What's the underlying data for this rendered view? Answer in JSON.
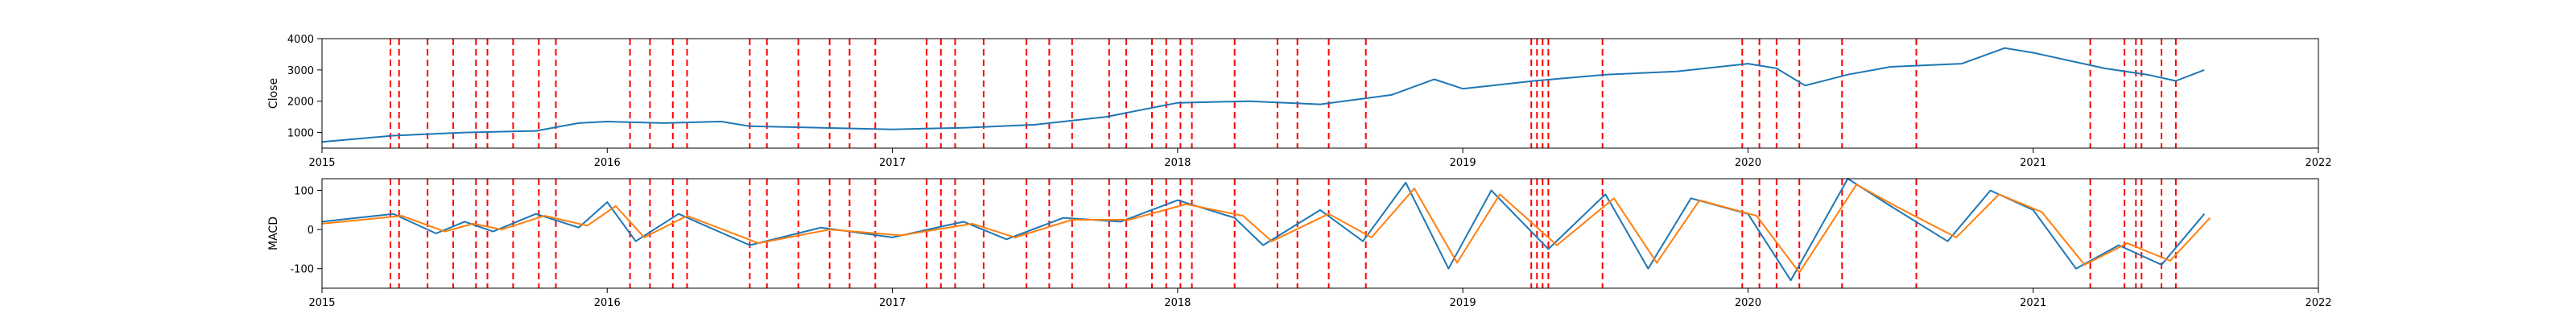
{
  "chart_data": [
    {
      "type": "line",
      "title": "",
      "xlabel": "",
      "ylabel": "Close",
      "xlim": [
        2015,
        2022
      ],
      "ylim": [
        500,
        4000
      ],
      "x_ticks": [
        "2015",
        "2016",
        "2017",
        "2018",
        "2019",
        "2020",
        "2021",
        "2022"
      ],
      "y_ticks": [
        "1000",
        "2000",
        "3000",
        "4000"
      ],
      "grid": false,
      "series": [
        {
          "color": "#1f77b4",
          "points": [
            [
              2015.0,
              700
            ],
            [
              2015.25,
              900
            ],
            [
              2015.5,
              1000
            ],
            [
              2015.75,
              1050
            ],
            [
              2015.9,
              1300
            ],
            [
              2016.0,
              1350
            ],
            [
              2016.2,
              1300
            ],
            [
              2016.4,
              1350
            ],
            [
              2016.5,
              1200
            ],
            [
              2016.75,
              1150
            ],
            [
              2017.0,
              1100
            ],
            [
              2017.25,
              1150
            ],
            [
              2017.5,
              1250
            ],
            [
              2017.75,
              1500
            ],
            [
              2018.0,
              1950
            ],
            [
              2018.25,
              2000
            ],
            [
              2018.5,
              1900
            ],
            [
              2018.75,
              2200
            ],
            [
              2018.9,
              2700
            ],
            [
              2019.0,
              2400
            ],
            [
              2019.25,
              2650
            ],
            [
              2019.5,
              2850
            ],
            [
              2019.75,
              2950
            ],
            [
              2020.0,
              3200
            ],
            [
              2020.1,
              3050
            ],
            [
              2020.2,
              2500
            ],
            [
              2020.35,
              2850
            ],
            [
              2020.5,
              3100
            ],
            [
              2020.75,
              3200
            ],
            [
              2020.9,
              3700
            ],
            [
              2021.0,
              3550
            ],
            [
              2021.25,
              3050
            ],
            [
              2021.4,
              2850
            ],
            [
              2021.5,
              2650
            ],
            [
              2021.6,
              3000
            ]
          ]
        }
      ]
    },
    {
      "type": "line",
      "title": "",
      "xlabel": "",
      "ylabel": "MACD",
      "xlim": [
        2015,
        2022
      ],
      "ylim": [
        -150,
        130
      ],
      "x_ticks": [
        "2015",
        "2016",
        "2017",
        "2018",
        "2019",
        "2020",
        "2021",
        "2022"
      ],
      "y_ticks": [
        "-100",
        "0",
        "100"
      ],
      "grid": false,
      "series": [
        {
          "color": "#1f77b4",
          "points": [
            [
              2015.0,
              20
            ],
            [
              2015.25,
              40
            ],
            [
              2015.4,
              -10
            ],
            [
              2015.5,
              20
            ],
            [
              2015.6,
              -5
            ],
            [
              2015.75,
              40
            ],
            [
              2015.9,
              5
            ],
            [
              2016.0,
              70
            ],
            [
              2016.1,
              -30
            ],
            [
              2016.25,
              40
            ],
            [
              2016.5,
              -40
            ],
            [
              2016.75,
              5
            ],
            [
              2017.0,
              -20
            ],
            [
              2017.25,
              20
            ],
            [
              2017.4,
              -25
            ],
            [
              2017.6,
              30
            ],
            [
              2017.8,
              20
            ],
            [
              2018.0,
              75
            ],
            [
              2018.2,
              30
            ],
            [
              2018.3,
              -40
            ],
            [
              2018.5,
              50
            ],
            [
              2018.65,
              -30
            ],
            [
              2018.8,
              120
            ],
            [
              2018.95,
              -100
            ],
            [
              2019.1,
              100
            ],
            [
              2019.3,
              -50
            ],
            [
              2019.5,
              90
            ],
            [
              2019.65,
              -100
            ],
            [
              2019.8,
              80
            ],
            [
              2020.0,
              40
            ],
            [
              2020.15,
              -130
            ],
            [
              2020.35,
              130
            ],
            [
              2020.5,
              60
            ],
            [
              2020.7,
              -30
            ],
            [
              2020.85,
              100
            ],
            [
              2021.0,
              50
            ],
            [
              2021.15,
              -100
            ],
            [
              2021.3,
              -40
            ],
            [
              2021.45,
              -90
            ],
            [
              2021.6,
              40
            ]
          ]
        },
        {
          "color": "#ff7f0e",
          "points": [
            [
              2015.0,
              15
            ],
            [
              2015.28,
              35
            ],
            [
              2015.43,
              -5
            ],
            [
              2015.53,
              15
            ],
            [
              2015.63,
              0
            ],
            [
              2015.78,
              35
            ],
            [
              2015.93,
              10
            ],
            [
              2016.03,
              60
            ],
            [
              2016.13,
              -20
            ],
            [
              2016.28,
              35
            ],
            [
              2016.53,
              -35
            ],
            [
              2016.78,
              0
            ],
            [
              2017.03,
              -15
            ],
            [
              2017.28,
              15
            ],
            [
              2017.43,
              -20
            ],
            [
              2017.63,
              25
            ],
            [
              2017.83,
              25
            ],
            [
              2018.03,
              65
            ],
            [
              2018.23,
              35
            ],
            [
              2018.33,
              -30
            ],
            [
              2018.53,
              40
            ],
            [
              2018.68,
              -20
            ],
            [
              2018.83,
              105
            ],
            [
              2018.98,
              -85
            ],
            [
              2019.13,
              90
            ],
            [
              2019.33,
              -40
            ],
            [
              2019.53,
              80
            ],
            [
              2019.68,
              -85
            ],
            [
              2019.83,
              75
            ],
            [
              2020.03,
              35
            ],
            [
              2020.18,
              -110
            ],
            [
              2020.38,
              115
            ],
            [
              2020.53,
              55
            ],
            [
              2020.73,
              -20
            ],
            [
              2020.88,
              90
            ],
            [
              2021.03,
              45
            ],
            [
              2021.18,
              -90
            ],
            [
              2021.33,
              -35
            ],
            [
              2021.48,
              -80
            ],
            [
              2021.62,
              30
            ]
          ]
        }
      ]
    }
  ],
  "event_lines": {
    "color": "#ff0000",
    "dates": [
      2015.24,
      2015.27,
      2015.37,
      2015.46,
      2015.54,
      2015.58,
      2015.67,
      2015.76,
      2015.82,
      2016.08,
      2016.15,
      2016.23,
      2016.28,
      2016.5,
      2016.56,
      2016.67,
      2016.78,
      2016.85,
      2016.94,
      2017.12,
      2017.17,
      2017.22,
      2017.32,
      2017.47,
      2017.55,
      2017.63,
      2017.76,
      2017.82,
      2017.91,
      2017.96,
      2018.01,
      2018.05,
      2018.2,
      2018.35,
      2018.42,
      2018.53,
      2018.66,
      2019.24,
      2019.26,
      2019.28,
      2019.3,
      2019.49,
      2019.98,
      2020.04,
      2020.1,
      2020.18,
      2020.33,
      2020.59,
      2021.2,
      2021.32,
      2021.36,
      2021.38,
      2021.45,
      2021.5
    ]
  }
}
